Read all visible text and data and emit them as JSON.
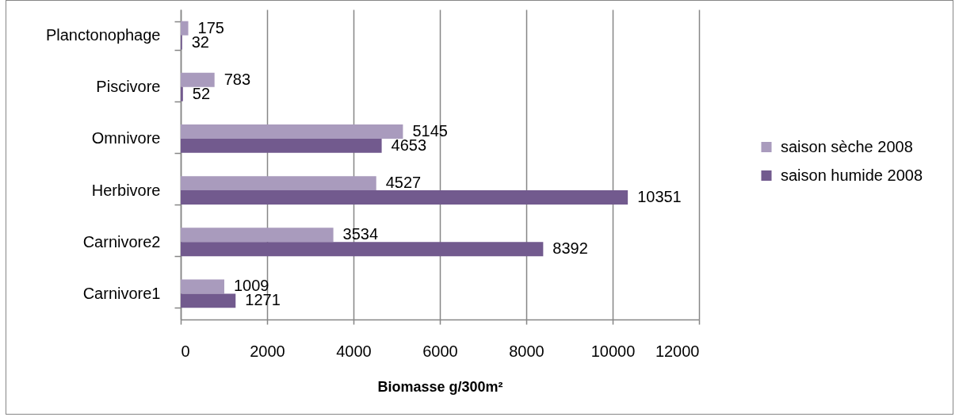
{
  "chart_data": {
    "type": "bar",
    "orientation": "horizontal",
    "categories": [
      "Planctonophage",
      "Piscivore",
      "Omnivore",
      "Herbivore",
      "Carnivore2",
      "Carnivore1"
    ],
    "series": [
      {
        "name": "saison sèche 2008",
        "color": "#a99bbd",
        "values": [
          175,
          783,
          5145,
          4527,
          3534,
          1009
        ]
      },
      {
        "name": "saison humide 2008",
        "color": "#725a8e",
        "values": [
          32,
          52,
          4653,
          10351,
          8392,
          1271
        ]
      }
    ],
    "xlabel": "Biomasse g/300m²",
    "xlim": [
      0,
      12000
    ],
    "xticks": [
      0,
      2000,
      4000,
      6000,
      8000,
      10000,
      12000
    ],
    "grid": "x",
    "legend": "right",
    "data_labels": true
  }
}
